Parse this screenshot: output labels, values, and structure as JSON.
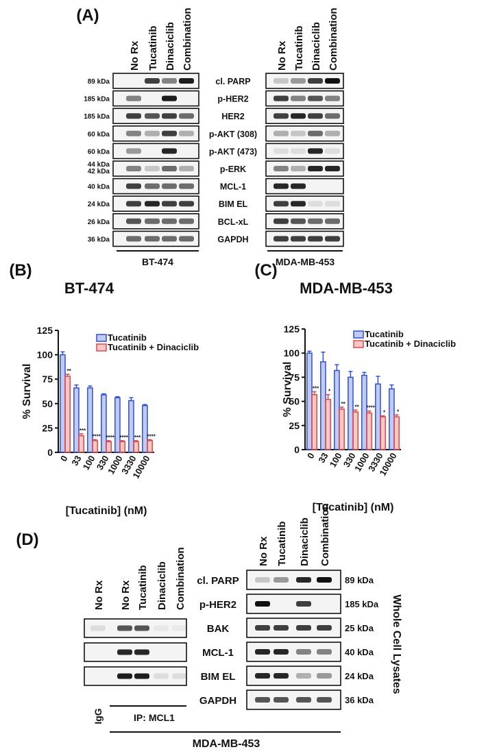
{
  "panel_a": {
    "label": "(A)",
    "lanes": [
      "No Rx",
      "Tucatinib",
      "Dinaciclib",
      "Combination"
    ],
    "rows": [
      {
        "protein": "cl. PARP",
        "kda": [
          "89 kDa"
        ]
      },
      {
        "protein": "p-HER2",
        "kda": [
          "185 kDa"
        ]
      },
      {
        "protein": "HER2",
        "kda": [
          "185 kDa"
        ]
      },
      {
        "protein": "p-AKT (308)",
        "kda": [
          "60 kDa"
        ]
      },
      {
        "protein": "p-AKT (473)",
        "kda": [
          "60 kDa"
        ]
      },
      {
        "protein": "p-ERK",
        "kda": [
          "44 kDa",
          "42 kDa"
        ]
      },
      {
        "protein": "MCL-1",
        "kda": [
          "40 kDa"
        ]
      },
      {
        "protein": "BIM EL",
        "kda": [
          "24 kDa"
        ]
      },
      {
        "protein": "BCL-xL",
        "kda": [
          "26 kDa"
        ]
      },
      {
        "protein": "GAPDH",
        "kda": [
          "36 kDa"
        ]
      }
    ],
    "cell_lines": [
      "BT-474",
      "MDA-MB-453"
    ]
  },
  "chart_data": [
    {
      "type": "bar",
      "panel_label": "(B)",
      "title": "BT-474",
      "x_label": "[Tucatinib] (nM)",
      "y_label": "% Survival",
      "categories": [
        "0",
        "33",
        "100",
        "330",
        "1000",
        "3330",
        "10000"
      ],
      "series": [
        {
          "name": "Tucatinib",
          "color": "#2f4fd8",
          "values": [
            100,
            66,
            66,
            59,
            56,
            53,
            48
          ],
          "errors": [
            3,
            3,
            2,
            1,
            1,
            3,
            1
          ]
        },
        {
          "name": "Tucatinib + Dinaciclib",
          "color": "#e04848",
          "values": [
            78,
            17,
            12,
            11,
            11,
            11,
            12
          ],
          "errors": [
            2,
            2,
            1,
            1,
            1,
            1,
            1
          ],
          "significance": [
            "**",
            "***",
            "****",
            "****",
            "****",
            "***",
            "****"
          ]
        }
      ],
      "ylim": [
        0,
        125
      ],
      "yticks": [
        0,
        25,
        50,
        75,
        100,
        125
      ]
    },
    {
      "type": "bar",
      "panel_label": "(C)",
      "title": "MDA-MB-453",
      "x_label": "[Tucatinib] (nM)",
      "y_label": "% Survival",
      "categories": [
        "0",
        "33",
        "100",
        "330",
        "1000",
        "3330",
        "10000"
      ],
      "series": [
        {
          "name": "Tucatinib",
          "color": "#2f4fd8",
          "values": [
            100,
            91,
            82,
            75,
            77,
            68,
            63
          ],
          "errors": [
            2,
            10,
            6,
            6,
            3,
            8,
            4
          ]
        },
        {
          "name": "Tucatinib + Dinaciclib",
          "color": "#e04848",
          "values": [
            57,
            52,
            42,
            39,
            38,
            34,
            34
          ],
          "errors": [
            3,
            5,
            2,
            2,
            2,
            1,
            2
          ],
          "significance": [
            "***",
            "*",
            "**",
            "**",
            "****",
            "*",
            "*"
          ]
        }
      ],
      "ylim": [
        0,
        125
      ],
      "yticks": [
        0,
        25,
        50,
        75,
        100,
        125
      ]
    }
  ],
  "panel_d": {
    "label": "(D)",
    "ip_lanes": [
      "No Rx",
      "No Rx",
      "Tucatinib",
      "Dinaciclib",
      "Combination"
    ],
    "igg": "IgG",
    "ip_label": "IP: MCL1",
    "wcl_lanes": [
      "No Rx",
      "Tucatinib",
      "Dinaciclib",
      "Combination"
    ],
    "wcl_rows": [
      {
        "protein": "cl. PARP",
        "kda": "89 kDa"
      },
      {
        "protein": "p-HER2",
        "kda": "185 kDa"
      },
      {
        "protein": "BAK",
        "kda": "25 kDa"
      },
      {
        "protein": "MCL-1",
        "kda": "40 kDa"
      },
      {
        "protein": "BIM EL",
        "kda": "24 kDa"
      },
      {
        "protein": "GAPDH",
        "kda": "36 kDa"
      }
    ],
    "wcl_label": "Whole Cell Lysates",
    "cell_line": "MDA-MB-453"
  }
}
